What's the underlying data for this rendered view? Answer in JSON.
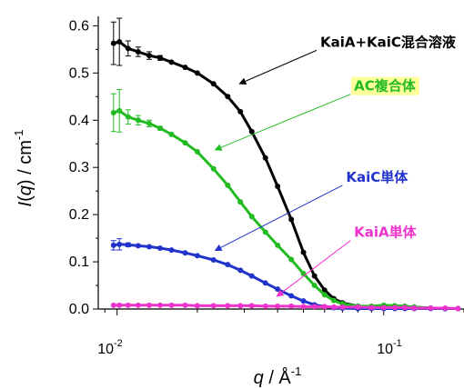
{
  "chart_data": {
    "type": "scatter",
    "xscale": "log",
    "xlim": [
      0.0085,
      0.2
    ],
    "ylim": [
      0,
      0.62
    ],
    "xlabel": {
      "var": "q",
      "unit": " / Å",
      "exp": "-1"
    },
    "ylabel": {
      "var": "I",
      "inner": "q",
      "unit": " / cm",
      "exp": "-1"
    },
    "x_ticks": [
      {
        "value": 0.01,
        "base": "10",
        "exp": "-2"
      },
      {
        "value": 0.1,
        "base": "10",
        "exp": "-1"
      }
    ],
    "y_ticks": [
      "0.0",
      "0.1",
      "0.2",
      "0.3",
      "0.4",
      "0.5",
      "0.6"
    ],
    "series": [
      {
        "name": "KaiA+KaiC混合溶液",
        "color": "#000000",
        "annotation_bg": "",
        "annotation_xy": [
          0.056,
          0.548
        ],
        "arrow_target": [
          0.029,
          0.478
        ],
        "x": [
          0.0097,
          0.0102,
          0.011,
          0.012,
          0.0132,
          0.0145,
          0.016,
          0.018,
          0.02,
          0.023,
          0.026,
          0.029,
          0.032,
          0.036,
          0.04,
          0.045,
          0.05,
          0.055,
          0.06,
          0.065,
          0.07,
          0.08,
          0.09,
          0.1,
          0.11,
          0.12,
          0.13,
          0.15,
          0.17,
          0.19
        ],
        "y": [
          0.563,
          0.566,
          0.552,
          0.545,
          0.537,
          0.532,
          0.523,
          0.512,
          0.5,
          0.477,
          0.45,
          0.418,
          0.376,
          0.32,
          0.26,
          0.19,
          0.12,
          0.07,
          0.04,
          0.022,
          0.013,
          0.006,
          0.005,
          0.006,
          0.006,
          0.005,
          0.004,
          0.002,
          0.001,
          0.001
        ],
        "errors": [
          0.045,
          0.05,
          0.016,
          0.01,
          0.008,
          0.005,
          0.003,
          0.002,
          0.002,
          0.002,
          0.001,
          0.001,
          0.001,
          0.001,
          0.001,
          0.001,
          0.001,
          0.001,
          0.001,
          0.001,
          0.001,
          0.001,
          0.001,
          0.001,
          0.001,
          0.001,
          0.001,
          0.001,
          0.001,
          0.001
        ]
      },
      {
        "name": "AC複合体",
        "color": "#22bb22",
        "annotation_bg": "#ffff99",
        "annotation_xy": [
          0.075,
          0.455
        ],
        "arrow_target": [
          0.0235,
          0.338
        ],
        "x": [
          0.0097,
          0.0102,
          0.011,
          0.012,
          0.0132,
          0.0145,
          0.016,
          0.018,
          0.02,
          0.023,
          0.026,
          0.029,
          0.032,
          0.036,
          0.04,
          0.045,
          0.05,
          0.055,
          0.06,
          0.065,
          0.07,
          0.08,
          0.09,
          0.1,
          0.11,
          0.12,
          0.13,
          0.15,
          0.17,
          0.19
        ],
        "y": [
          0.416,
          0.42,
          0.407,
          0.4,
          0.393,
          0.383,
          0.37,
          0.352,
          0.333,
          0.297,
          0.262,
          0.227,
          0.196,
          0.163,
          0.135,
          0.105,
          0.075,
          0.05,
          0.03,
          0.018,
          0.011,
          0.006,
          0.006,
          0.008,
          0.007,
          0.006,
          0.004,
          0.002,
          0.001,
          0.001
        ],
        "errors": [
          0.04,
          0.045,
          0.015,
          0.01,
          0.007,
          0.004,
          0.003,
          0.002,
          0.002,
          0.002,
          0.001,
          0.001,
          0.001,
          0.001,
          0.001,
          0.001,
          0.001,
          0.001,
          0.001,
          0.001,
          0.001,
          0.001,
          0.001,
          0.001,
          0.001,
          0.001,
          0.001,
          0.001,
          0.001,
          0.001
        ]
      },
      {
        "name": "KaiC単体",
        "color": "#2233cc",
        "annotation_bg": "",
        "annotation_xy": [
          0.07,
          0.262
        ],
        "arrow_target": [
          0.0235,
          0.125
        ],
        "x": [
          0.0097,
          0.0102,
          0.011,
          0.012,
          0.0132,
          0.0145,
          0.016,
          0.018,
          0.02,
          0.023,
          0.026,
          0.029,
          0.032,
          0.036,
          0.04,
          0.045,
          0.05,
          0.055,
          0.06,
          0.065,
          0.07,
          0.08,
          0.09,
          0.1,
          0.11,
          0.12,
          0.13,
          0.15,
          0.17,
          0.19
        ],
        "y": [
          0.135,
          0.137,
          0.136,
          0.134,
          0.132,
          0.129,
          0.125,
          0.119,
          0.113,
          0.104,
          0.094,
          0.082,
          0.07,
          0.055,
          0.042,
          0.028,
          0.017,
          0.009,
          0.005,
          0.003,
          0.002,
          0.001,
          0.001,
          0.001,
          0.001,
          0.001,
          0.001,
          0.001,
          0.001,
          0.001
        ],
        "errors": [
          0.01,
          0.012,
          0.004,
          0.002,
          0.001,
          0.001,
          0.001,
          0.001,
          0.001,
          0.001,
          0.001,
          0.001,
          0.001,
          0.001,
          0.001,
          0.001,
          0.001,
          0.001,
          0.001,
          0.001,
          0.001,
          0.001,
          0.001,
          0.001,
          0.001,
          0.001,
          0.001,
          0.001,
          0.001,
          0.001
        ]
      },
      {
        "name": "KaiA単体",
        "color": "#ee33cc",
        "annotation_bg": "",
        "annotation_xy": [
          0.075,
          0.145
        ],
        "arrow_target": [
          0.04,
          0.028
        ],
        "x": [
          0.0097,
          0.0102,
          0.011,
          0.012,
          0.0132,
          0.0145,
          0.016,
          0.018,
          0.02,
          0.023,
          0.026,
          0.029,
          0.032,
          0.036,
          0.04,
          0.045,
          0.05,
          0.055,
          0.06,
          0.065,
          0.07,
          0.08,
          0.09,
          0.1,
          0.11,
          0.12,
          0.13,
          0.15,
          0.17,
          0.19
        ],
        "y": [
          0.008,
          0.008,
          0.008,
          0.008,
          0.008,
          0.008,
          0.008,
          0.008,
          0.007,
          0.007,
          0.007,
          0.007,
          0.007,
          0.006,
          0.006,
          0.006,
          0.005,
          0.005,
          0.005,
          0.004,
          0.004,
          0.004,
          0.003,
          0.003,
          0.003,
          0.003,
          0.002,
          0.002,
          0.002,
          0.001
        ],
        "errors": [
          0.001,
          0.001,
          0.001,
          0.001,
          0.001,
          0.001,
          0.001,
          0.001,
          0.001,
          0.001,
          0.001,
          0.001,
          0.001,
          0.001,
          0.001,
          0.001,
          0.001,
          0.001,
          0.001,
          0.001,
          0.001,
          0.001,
          0.001,
          0.001,
          0.001,
          0.001,
          0.001,
          0.001,
          0.001,
          0.001
        ]
      }
    ]
  }
}
